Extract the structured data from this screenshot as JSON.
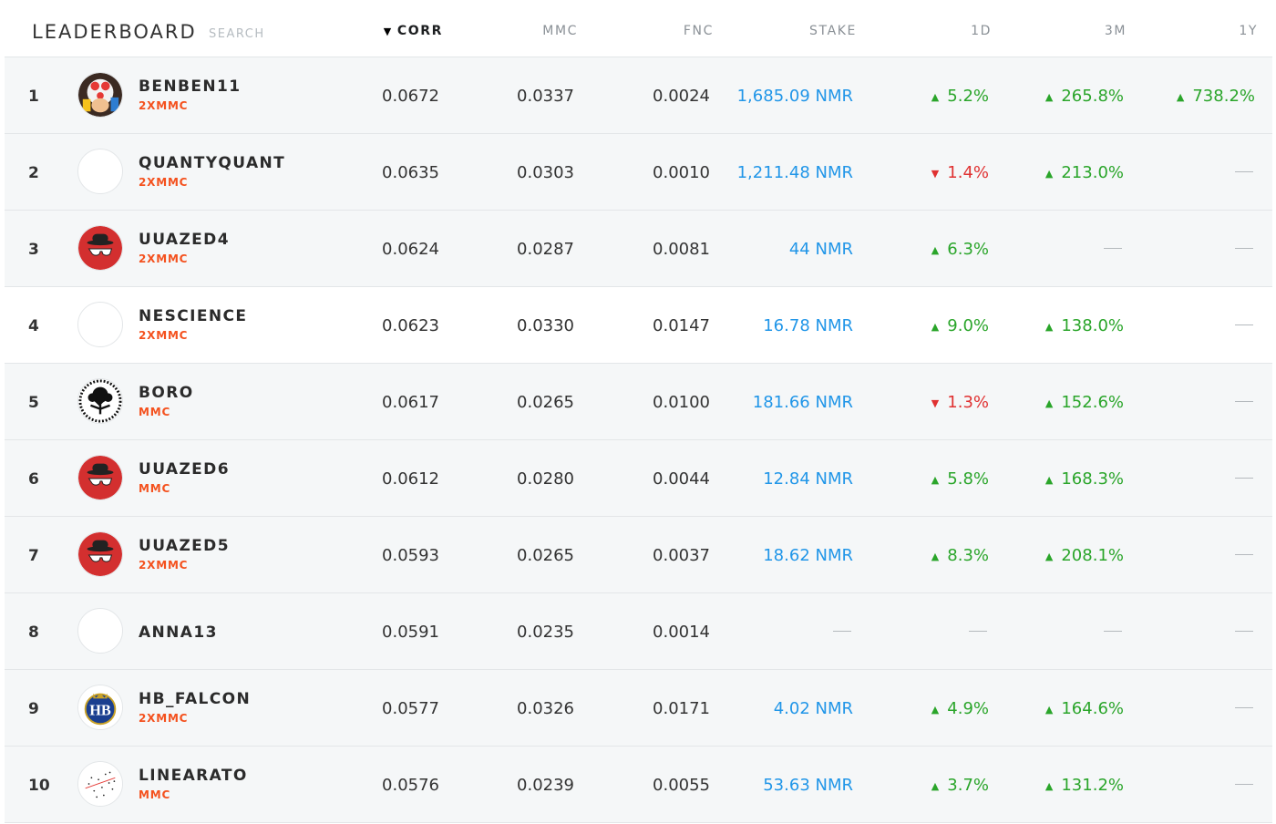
{
  "header": {
    "title": "LEADERBOARD",
    "search": "SEARCH",
    "columns": {
      "corr": "CORR",
      "mmc": "MMC",
      "fnc": "FNC",
      "stake": "STAKE",
      "d1": "1D",
      "m3": "3M",
      "y1": "1Y"
    },
    "sort_arrow": "▼"
  },
  "colors": {
    "stake": "#2196e8",
    "up": "#2aa52a",
    "down": "#e03131",
    "tag": "#f4511e",
    "row_bg": "#f5f7f8"
  },
  "rows": [
    {
      "rank": "1",
      "name": "BENBEN11",
      "tag": "2XMMC",
      "avatar": "toad-avatar",
      "corr": "0.0672",
      "mmc": "0.0337",
      "fnc": "0.0024",
      "stake": "1,685.09 NMR",
      "d1": "5.2%",
      "d1_dir": "up",
      "m3": "265.8%",
      "m3_dir": "up",
      "y1": "738.2%",
      "y1_dir": "up"
    },
    {
      "rank": "2",
      "name": "QUANTYQUANT",
      "tag": "2XMMC",
      "avatar": "blank-avatar",
      "corr": "0.0635",
      "mmc": "0.0303",
      "fnc": "0.0010",
      "stake": "1,211.48 NMR",
      "d1": "1.4%",
      "d1_dir": "down",
      "m3": "213.0%",
      "m3_dir": "up",
      "y1": "",
      "y1_dir": "none"
    },
    {
      "rank": "3",
      "name": "UUAZED4",
      "tag": "2XMMC",
      "avatar": "hat-glasses-avatar",
      "corr": "0.0624",
      "mmc": "0.0287",
      "fnc": "0.0081",
      "stake": "44 NMR",
      "d1": "6.3%",
      "d1_dir": "up",
      "m3": "",
      "m3_dir": "none",
      "y1": "",
      "y1_dir": "none"
    },
    {
      "rank": "4",
      "name": "NESCIENCE",
      "tag": "2XMMC",
      "avatar": "blank-avatar",
      "corr": "0.0623",
      "mmc": "0.0330",
      "fnc": "0.0147",
      "stake": "16.78 NMR",
      "d1": "9.0%",
      "d1_dir": "up",
      "m3": "138.0%",
      "m3_dir": "up",
      "y1": "",
      "y1_dir": "none"
    },
    {
      "rank": "5",
      "name": "BORO",
      "tag": "MMC",
      "avatar": "tree-avatar",
      "corr": "0.0617",
      "mmc": "0.0265",
      "fnc": "0.0100",
      "stake": "181.66 NMR",
      "d1": "1.3%",
      "d1_dir": "down",
      "m3": "152.6%",
      "m3_dir": "up",
      "y1": "",
      "y1_dir": "none"
    },
    {
      "rank": "6",
      "name": "UUAZED6",
      "tag": "MMC",
      "avatar": "hat-glasses-avatar",
      "corr": "0.0612",
      "mmc": "0.0280",
      "fnc": "0.0044",
      "stake": "12.84 NMR",
      "d1": "5.8%",
      "d1_dir": "up",
      "m3": "168.3%",
      "m3_dir": "up",
      "y1": "",
      "y1_dir": "none"
    },
    {
      "rank": "7",
      "name": "UUAZED5",
      "tag": "2XMMC",
      "avatar": "hat-glasses-avatar",
      "corr": "0.0593",
      "mmc": "0.0265",
      "fnc": "0.0037",
      "stake": "18.62 NMR",
      "d1": "8.3%",
      "d1_dir": "up",
      "m3": "208.1%",
      "m3_dir": "up",
      "y1": "",
      "y1_dir": "none"
    },
    {
      "rank": "8",
      "name": "ANNA13",
      "tag": "",
      "avatar": "blank-avatar",
      "corr": "0.0591",
      "mmc": "0.0235",
      "fnc": "0.0014",
      "stake": "",
      "d1": "",
      "d1_dir": "none",
      "m3": "",
      "m3_dir": "none",
      "y1": "",
      "y1_dir": "none"
    },
    {
      "rank": "9",
      "name": "HB_FALCON",
      "tag": "2XMMC",
      "avatar": "hb-crest-avatar",
      "corr": "0.0577",
      "mmc": "0.0326",
      "fnc": "0.0171",
      "stake": "4.02 NMR",
      "d1": "4.9%",
      "d1_dir": "up",
      "m3": "164.6%",
      "m3_dir": "up",
      "y1": "",
      "y1_dir": "none"
    },
    {
      "rank": "10",
      "name": "LINEARATO",
      "tag": "MMC",
      "avatar": "scatter-avatar",
      "corr": "0.0576",
      "mmc": "0.0239",
      "fnc": "0.0055",
      "stake": "53.63 NMR",
      "d1": "3.7%",
      "d1_dir": "up",
      "m3": "131.2%",
      "m3_dir": "up",
      "y1": "",
      "y1_dir": "none"
    }
  ]
}
